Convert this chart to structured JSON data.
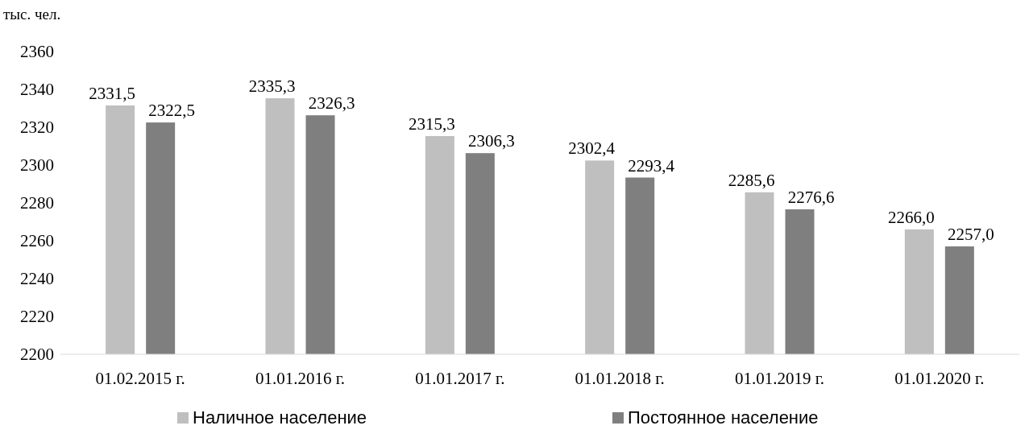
{
  "chart_data": {
    "type": "bar",
    "ylabel": "тыс. чел.",
    "categories": [
      "01.02.2015 г.",
      "01.01.2016 г.",
      "01.01.2017 г.",
      "01.01.2018 г.",
      "01.01.2019 г.",
      "01.01.2020 г."
    ],
    "series": [
      {
        "name": "Наличное население",
        "color": "#bfbfbf",
        "values": [
          2331.5,
          2335.3,
          2315.3,
          2302.4,
          2285.6,
          2266.0
        ],
        "value_labels": [
          "2331,5",
          "2335,3",
          "2315,3",
          "2302,4",
          "2285,6",
          "2266,0"
        ]
      },
      {
        "name": "Постоянное население",
        "color": "#7f7f7f",
        "values": [
          2322.5,
          2326.3,
          2306.3,
          2293.4,
          2276.6,
          2257.0
        ],
        "value_labels": [
          "2322,5",
          "2326,3",
          "2306,3",
          "2293,4",
          "2276,6",
          "2257,0"
        ]
      }
    ],
    "ylim": [
      2200,
      2360
    ],
    "yticks": [
      2200,
      2220,
      2240,
      2260,
      2280,
      2300,
      2320,
      2340,
      2360
    ],
    "grid": false,
    "legend": "bottom"
  }
}
